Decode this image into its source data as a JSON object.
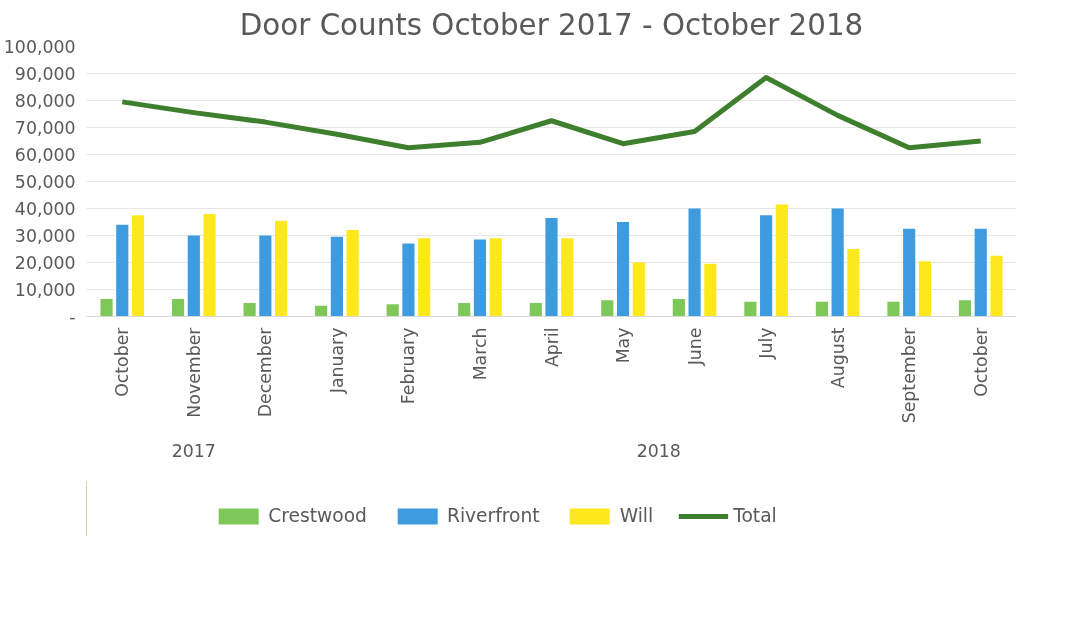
{
  "chart_data": {
    "type": "bar",
    "title": "Door Counts October 2017 - October 2018",
    "categories": [
      "October",
      "November",
      "December",
      "January",
      "February",
      "March",
      "April",
      "May",
      "June",
      "July",
      "August",
      "September",
      "October"
    ],
    "series": [
      {
        "name": "Crestwood",
        "color": "#7ec85a",
        "values": [
          6500,
          6500,
          5000,
          4000,
          4500,
          5000,
          5000,
          6000,
          6500,
          5500,
          5500,
          5500,
          6000
        ]
      },
      {
        "name": "Riverfront",
        "color": "#3d9be0",
        "values": [
          34000,
          30000,
          30000,
          29500,
          27000,
          28500,
          36500,
          35000,
          40000,
          37500,
          40000,
          32500,
          32500
        ]
      },
      {
        "name": "Will",
        "color": "#fde81e",
        "values": [
          37500,
          38000,
          35500,
          32000,
          29000,
          29000,
          29000,
          20000,
          19500,
          41500,
          25000,
          20500,
          22500
        ]
      },
      {
        "name": "Total",
        "color": "#3e7f2e",
        "type": "line",
        "values": [
          79500,
          75500,
          72000,
          67500,
          62500,
          64500,
          72500,
          64000,
          68500,
          88500,
          74500,
          62500,
          65000
        ]
      }
    ],
    "annotations": [
      "2017",
      "2018"
    ],
    "ylim": [
      0,
      100000
    ],
    "yticks": [
      {
        "value": 0,
        "label": "-"
      },
      {
        "value": 10000,
        "label": "10,000"
      },
      {
        "value": 20000,
        "label": "20,000"
      },
      {
        "value": 30000,
        "label": "30,000"
      },
      {
        "value": 40000,
        "label": "40,000"
      },
      {
        "value": 50000,
        "label": "50,000"
      },
      {
        "value": 60000,
        "label": "60,000"
      },
      {
        "value": 70000,
        "label": "70,000"
      },
      {
        "value": 80000,
        "label": "80,000"
      },
      {
        "value": 90000,
        "label": "90,000"
      },
      {
        "value": 100000,
        "label": "100,000"
      }
    ],
    "grid": "y",
    "legend": "bottom",
    "marker": "none",
    "line_style": "solid"
  }
}
